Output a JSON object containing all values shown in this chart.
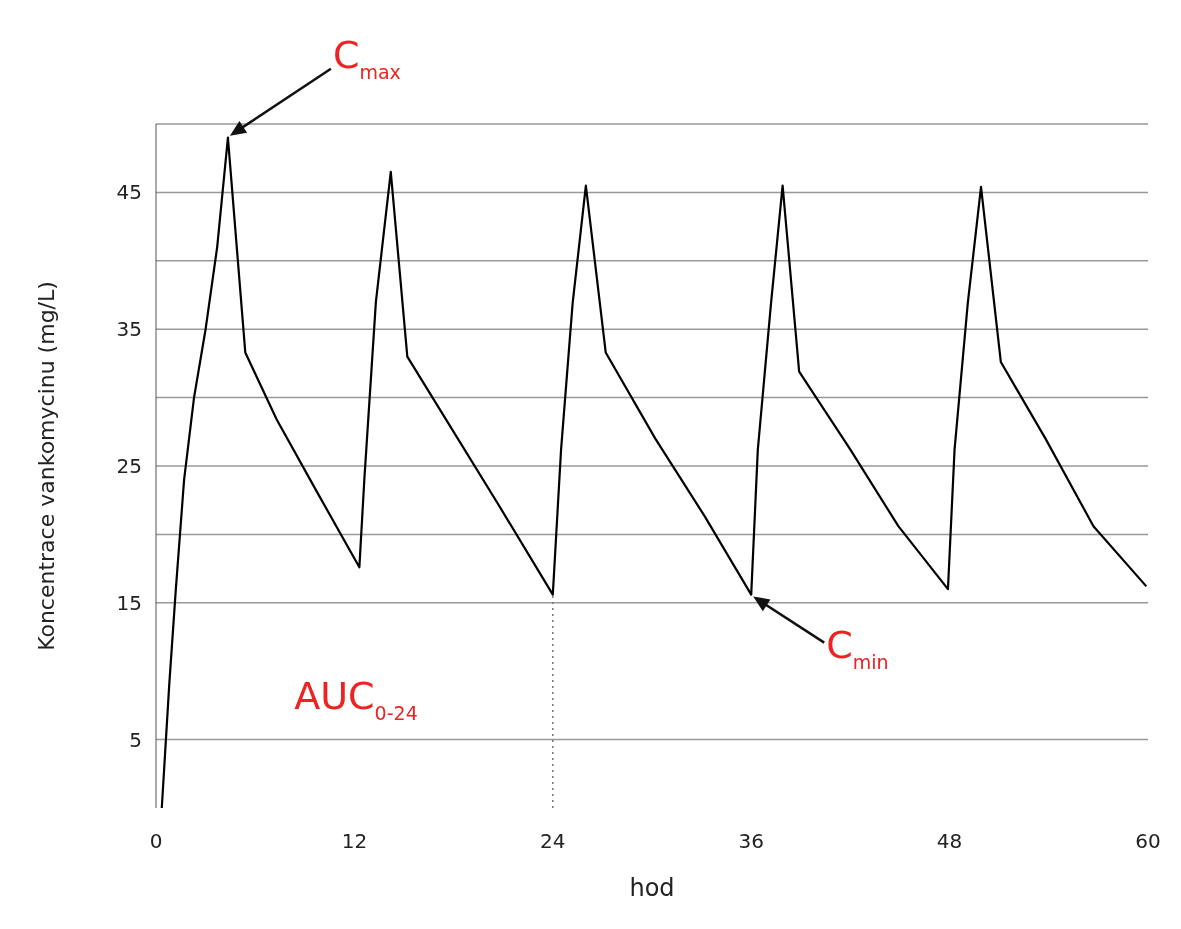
{
  "chart_data": {
    "type": "line",
    "xlabel": "hod",
    "ylabel": "Koncentrace vankomycinu (mg/L)",
    "xlim": [
      0,
      60
    ],
    "ylim": [
      0,
      50
    ],
    "xticks": [
      0,
      12,
      24,
      36,
      48,
      60
    ],
    "yticks": [
      5,
      15,
      {
        "value": 20,
        "label": null
      },
      25,
      {
        "value": 30,
        "label": null
      },
      35,
      {
        "value": 40,
        "label": null
      },
      45,
      {
        "value": 50,
        "label": null
      }
    ],
    "grid": "y",
    "marker": "none",
    "line_style": "solid",
    "ref_lines": [
      {
        "axis": "x",
        "value": 24,
        "line_style": "dotted",
        "color": "#777777"
      }
    ],
    "series": [
      {
        "color": "#000000",
        "x": [
          0.35,
          0.8,
          1.2,
          1.7,
          2.3,
          3.0,
          3.7,
          4.35,
          5.4,
          7.3,
          9.6,
          12.3,
          12.6,
          13.3,
          14.2,
          15.2,
          17.9,
          20.8,
          24.0,
          24.5,
          25.2,
          26.0,
          27.2,
          30.2,
          33.2,
          36.0,
          36.4,
          37.2,
          37.9,
          38.9,
          42.0,
          44.9,
          47.9,
          48.3,
          49.1,
          49.9,
          51.1,
          53.8,
          56.7,
          59.9
        ],
        "values": [
          0,
          9,
          16,
          24,
          30,
          35,
          41,
          49,
          33.3,
          28.4,
          23.4,
          17.6,
          24,
          37,
          46.5,
          33,
          27.7,
          22,
          15.6,
          26.2,
          36.9,
          45.5,
          33.3,
          27,
          21.3,
          15.6,
          26.2,
          36.9,
          45.5,
          31.9,
          26.2,
          20.6,
          16,
          26.2,
          36.9,
          45.4,
          32.6,
          27,
          20.6,
          16.2
        ]
      }
    ],
    "annotations": [
      "C$_{max}$",
      {
        "text": "C$_{min}$",
        "x": 36.0,
        "y": 15.6
      },
      "AUC$_{0-24}$"
    ]
  }
}
